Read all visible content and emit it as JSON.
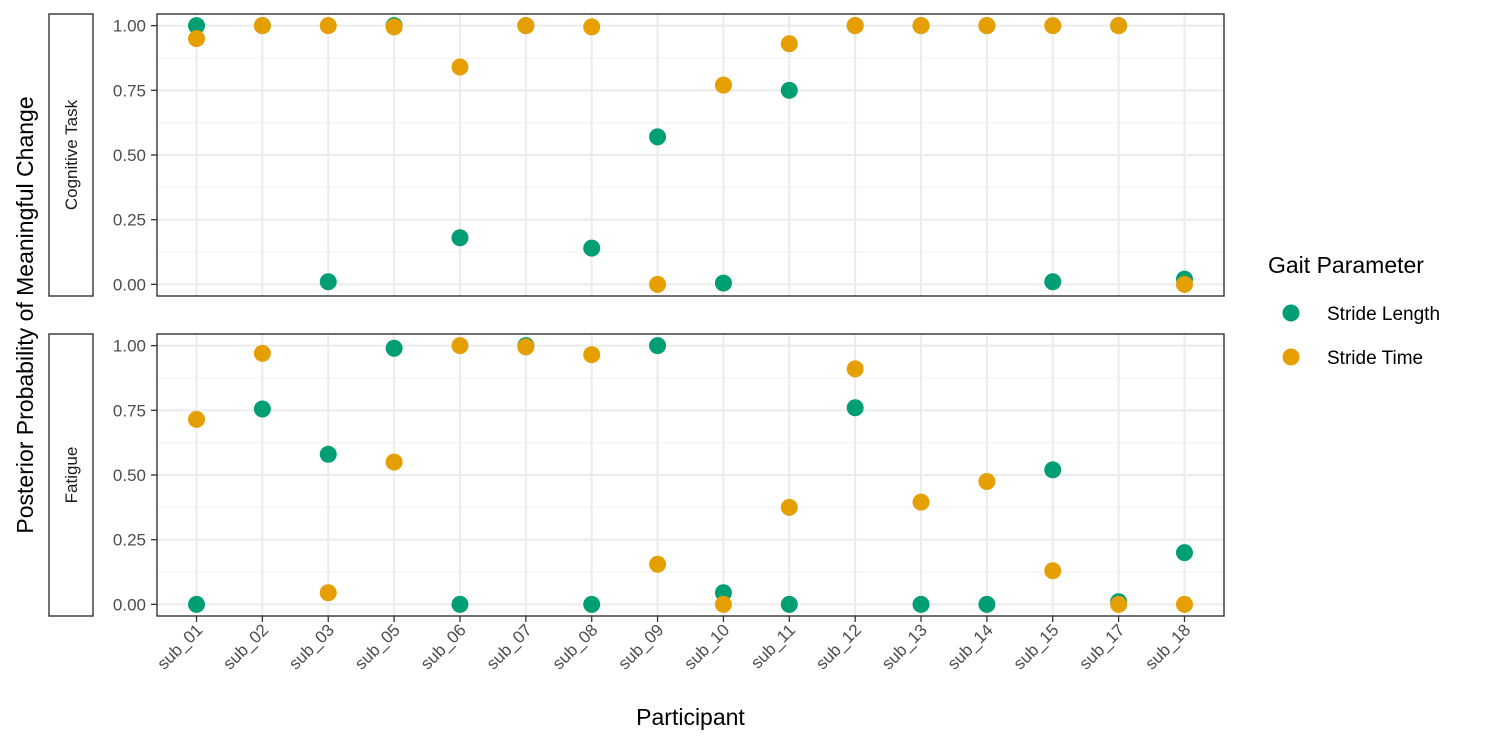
{
  "chart_data": {
    "type": "scatter",
    "ylabel": "Posterior Probability of Meaningful Change",
    "xlabel": "Participant",
    "categories": [
      "sub_01",
      "sub_02",
      "sub_03",
      "sub_05",
      "sub_06",
      "sub_07",
      "sub_08",
      "sub_09",
      "sub_10",
      "sub_11",
      "sub_12",
      "sub_13",
      "sub_14",
      "sub_15",
      "sub_17",
      "sub_18"
    ],
    "ylim": [
      -0.045,
      1.045
    ],
    "yticks": [
      0.0,
      0.25,
      0.5,
      0.75,
      1.0
    ],
    "ytick_labels": [
      "0.00",
      "0.25",
      "0.50",
      "0.75",
      "1.00"
    ],
    "grid": true,
    "legend": {
      "title": "Gait Parameter",
      "position": "right",
      "entries": [
        "Stride Length",
        "Stride Time"
      ]
    },
    "colors": {
      "Stride Length": "#009E73",
      "Stride Time": "#E69F00"
    },
    "panels": [
      {
        "label": "Cognitive Task",
        "series": [
          {
            "name": "Stride Length",
            "values": [
              1.0,
              1.0,
              0.01,
              1.0,
              0.18,
              1.0,
              0.14,
              0.57,
              0.005,
              0.75,
              1.0,
              1.0,
              1.0,
              0.01,
              1.0,
              0.02
            ]
          },
          {
            "name": "Stride Time",
            "values": [
              0.95,
              1.0,
              1.0,
              0.995,
              0.84,
              1.0,
              0.995,
              0.0,
              0.77,
              0.93,
              1.0,
              1.0,
              1.0,
              1.0,
              1.0,
              0.0
            ]
          }
        ]
      },
      {
        "label": "Fatigue",
        "series": [
          {
            "name": "Stride Length",
            "values": [
              0.0,
              0.755,
              0.58,
              0.99,
              0.0,
              1.0,
              0.0,
              1.0,
              0.045,
              0.0,
              0.76,
              0.0,
              0.0,
              0.52,
              0.01,
              0.2
            ]
          },
          {
            "name": "Stride Time",
            "values": [
              0.715,
              0.97,
              0.045,
              0.55,
              1.0,
              0.995,
              0.965,
              0.155,
              0.0,
              0.375,
              0.91,
              0.395,
              0.475,
              0.13,
              0.0,
              0.0
            ]
          }
        ]
      }
    ]
  }
}
